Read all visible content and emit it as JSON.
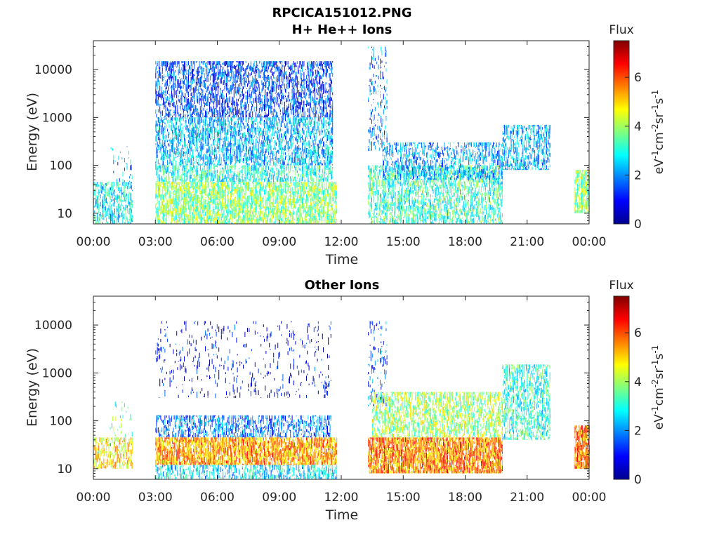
{
  "figure_title": "RPCICA151012.PNG",
  "chart_data": [
    {
      "type": "heatmap",
      "title": "H+ He++ Ions",
      "xlabel": "Time",
      "ylabel": "Energy (eV)",
      "xticks": [
        "00:00",
        "03:00",
        "06:00",
        "09:00",
        "12:00",
        "15:00",
        "18:00",
        "21:00",
        "00:00"
      ],
      "xlim_hours": [
        0,
        24
      ],
      "yscale": "log",
      "ylim": [
        6,
        40000
      ],
      "yticks": [
        10,
        100,
        1000,
        10000
      ],
      "ytick_labels": [
        "10",
        "100",
        "1000",
        "10000"
      ],
      "colorbar": {
        "title": "Flux",
        "label": "eV-1cm-2sr-1s-1",
        "range": [
          0,
          7.5
        ],
        "ticks": [
          "0",
          "2",
          "4",
          "6"
        ]
      },
      "regions": [
        {
          "t0": 0.0,
          "t1": 1.9,
          "e0": 6,
          "e1": 45,
          "flux": 2.8,
          "density": 0.55
        },
        {
          "t0": 0.8,
          "t1": 1.9,
          "e0": 45,
          "e1": 250,
          "flux": 2.2,
          "density": 0.1
        },
        {
          "t0": 3.0,
          "t1": 11.6,
          "e0": 1000,
          "e1": 15000,
          "flux": 1.4,
          "density": 0.5
        },
        {
          "t0": 3.0,
          "t1": 11.6,
          "e0": 100,
          "e1": 1000,
          "flux": 2.3,
          "density": 0.55
        },
        {
          "t0": 3.0,
          "t1": 11.6,
          "e0": 45,
          "e1": 100,
          "flux": 3.0,
          "density": 0.55
        },
        {
          "t0": 3.0,
          "t1": 11.8,
          "e0": 6,
          "e1": 45,
          "flux": 3.8,
          "density": 0.7
        },
        {
          "t0": 13.3,
          "t1": 14.2,
          "e0": 200,
          "e1": 30000,
          "flux": 1.8,
          "density": 0.2
        },
        {
          "t0": 13.3,
          "t1": 19.8,
          "e0": 6,
          "e1": 100,
          "flux": 3.2,
          "density": 0.55
        },
        {
          "t0": 14.0,
          "t1": 19.8,
          "e0": 50,
          "e1": 300,
          "flux": 2.1,
          "density": 0.4
        },
        {
          "t0": 19.8,
          "t1": 22.1,
          "e0": 80,
          "e1": 700,
          "flux": 2.3,
          "density": 0.5
        },
        {
          "t0": 23.3,
          "t1": 24.0,
          "e0": 10,
          "e1": 80,
          "flux": 3.9,
          "density": 0.75
        }
      ]
    },
    {
      "type": "heatmap",
      "title": "Other Ions",
      "xlabel": "Time",
      "ylabel": "Energy (eV)",
      "xticks": [
        "00:00",
        "03:00",
        "06:00",
        "09:00",
        "12:00",
        "15:00",
        "18:00",
        "21:00",
        "00:00"
      ],
      "xlim_hours": [
        0,
        24
      ],
      "yscale": "log",
      "ylim": [
        6,
        40000
      ],
      "yticks": [
        10,
        100,
        1000,
        10000
      ],
      "ytick_labels": [
        "10",
        "100",
        "1000",
        "10000"
      ],
      "colorbar": {
        "title": "Flux",
        "label": "eV-1cm-2sr-1s-1",
        "range": [
          0,
          7.5
        ],
        "ticks": [
          "0",
          "2",
          "4",
          "6"
        ]
      },
      "regions": [
        {
          "t0": 0.0,
          "t1": 1.9,
          "e0": 10,
          "e1": 45,
          "flux": 4.8,
          "density": 0.55
        },
        {
          "t0": 0.8,
          "t1": 1.9,
          "e0": 45,
          "e1": 250,
          "flux": 3.5,
          "density": 0.1
        },
        {
          "t0": 3.0,
          "t1": 11.5,
          "e0": 300,
          "e1": 12000,
          "flux": 0.8,
          "density": 0.08
        },
        {
          "t0": 3.0,
          "t1": 11.5,
          "e0": 45,
          "e1": 130,
          "flux": 1.8,
          "density": 0.45
        },
        {
          "t0": 3.0,
          "t1": 11.8,
          "e0": 12,
          "e1": 45,
          "flux": 5.4,
          "density": 0.8
        },
        {
          "t0": 3.0,
          "t1": 11.8,
          "e0": 6,
          "e1": 12,
          "flux": 2.6,
          "density": 0.45
        },
        {
          "t0": 13.3,
          "t1": 14.2,
          "e0": 200,
          "e1": 12000,
          "flux": 1.6,
          "density": 0.15
        },
        {
          "t0": 13.3,
          "t1": 19.8,
          "e0": 8,
          "e1": 45,
          "flux": 5.6,
          "density": 0.85
        },
        {
          "t0": 13.5,
          "t1": 19.8,
          "e0": 45,
          "e1": 400,
          "flux": 4.0,
          "density": 0.55
        },
        {
          "t0": 19.8,
          "t1": 22.1,
          "e0": 40,
          "e1": 1500,
          "flux": 3.1,
          "density": 0.5
        },
        {
          "t0": 23.3,
          "t1": 24.0,
          "e0": 10,
          "e1": 80,
          "flux": 5.8,
          "density": 0.85
        }
      ]
    }
  ]
}
